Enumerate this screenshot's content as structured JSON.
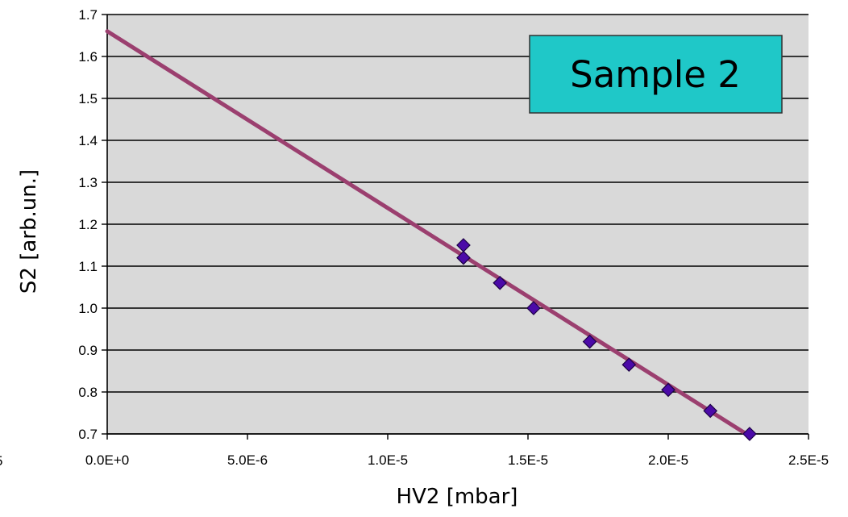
{
  "colors": {
    "plot_background": "#d9d9d9",
    "gridline": "#000000",
    "fit_line": "#9b3f6f",
    "marker": "#4b0aa8",
    "marker_stroke": "#1c0045",
    "label_box_fill": "#1fc8c8",
    "label_box_stroke": "#333333"
  },
  "chart_data": {
    "type": "scatter",
    "title": "",
    "label_box": "Sample 2",
    "xlabel": "HV2 [mbar]",
    "ylabel": "S2 [arb.un.]",
    "xlim": [
      0,
      2.5e-05
    ],
    "ylim": [
      0.7,
      1.7
    ],
    "x_ticks": [
      {
        "value": 0,
        "label": "0.0E+0"
      },
      {
        "value": 5e-06,
        "label": "5.0E-6"
      },
      {
        "value": 1e-05,
        "label": "1.0E-5"
      },
      {
        "value": 1.5e-05,
        "label": "1.5E-5"
      },
      {
        "value": 2e-05,
        "label": "2.0E-5"
      },
      {
        "value": 2.5e-05,
        "label": "2.5E-5"
      }
    ],
    "y_ticks": [
      {
        "value": 0.7,
        "label": "0.7"
      },
      {
        "value": 0.8,
        "label": "0.8"
      },
      {
        "value": 0.9,
        "label": "0.9"
      },
      {
        "value": 1.0,
        "label": "1.0"
      },
      {
        "value": 1.1,
        "label": "1.1"
      },
      {
        "value": 1.2,
        "label": "1.2"
      },
      {
        "value": 1.3,
        "label": "1.3"
      },
      {
        "value": 1.4,
        "label": "1.4"
      },
      {
        "value": 1.5,
        "label": "1.5"
      },
      {
        "value": 1.6,
        "label": "1.6"
      },
      {
        "value": 1.7,
        "label": "1.7"
      }
    ],
    "grid": {
      "horizontal": true,
      "vertical": false
    },
    "left_cut_label": "5",
    "series": [
      {
        "marker": "diamond",
        "x": [
          1.27e-05,
          1.27e-05,
          1.4e-05,
          1.52e-05,
          1.72e-05,
          1.86e-05,
          2e-05,
          2.15e-05,
          2.29e-05
        ],
        "y": [
          1.15,
          1.12,
          1.06,
          1.0,
          0.92,
          0.865,
          0.805,
          0.755,
          0.7
        ]
      }
    ],
    "fit_line": {
      "x": [
        0,
        2.29e-05
      ],
      "y": [
        1.66,
        0.695
      ]
    }
  }
}
